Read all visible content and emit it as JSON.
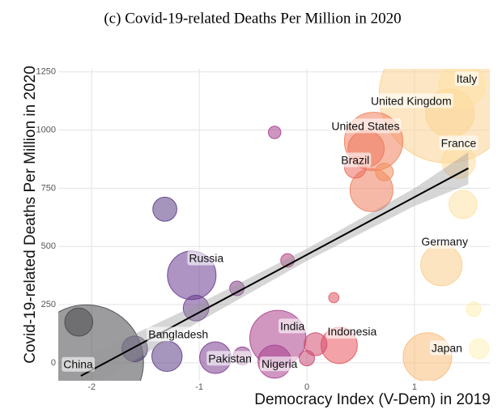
{
  "chart_data": {
    "type": "bubble",
    "title": "(c) Covid-19-related Deaths Per Million in 2020",
    "x_label": "Democracy Index (V-Dem) in 2019",
    "y_label": "Covid-19-related Deaths Per Million in 2020",
    "xlim": [
      -2.31,
      1.7
    ],
    "ylim": [
      -77,
      1263
    ],
    "xticks": [
      -2,
      -1,
      0,
      1
    ],
    "yticks": [
      0,
      250,
      500,
      750,
      1000,
      1250
    ],
    "grid": true,
    "colorscale": {
      "stops": [
        -2,
        -1.2,
        -0.3,
        0.3,
        0.9,
        1.6
      ],
      "colors": [
        "#4a4a4e",
        "#5e3c8f",
        "#a8408e",
        "#e9585e",
        "#f6a660",
        "#fff3b8"
      ]
    },
    "series": [
      {
        "labels": [
          "China",
          "Bangladesh",
          "Pakistan",
          "Nigeria",
          "India",
          "Indonesia",
          "Japan",
          "Germany",
          "France",
          "Brazil",
          "United States",
          "United Kingdom",
          "Italy",
          "Russia",
          null,
          null,
          null,
          null,
          null,
          null,
          null,
          null,
          null,
          null,
          null,
          null,
          null,
          null,
          null,
          null,
          null,
          null
        ],
        "x": [
          -2.05,
          -1.3,
          -0.85,
          -0.3,
          -0.27,
          0.3,
          1.12,
          1.25,
          1.41,
          0.6,
          0.62,
          1.33,
          1.44,
          -1.07,
          1.3,
          -1.32,
          -0.3,
          -2.12,
          -1.03,
          -0.65,
          0.55,
          0.45,
          0.72,
          1.45,
          1.55,
          -0.18,
          0.08,
          0.25,
          -1.6,
          -0.6,
          1.6,
          0.0
        ],
        "values": [
          3,
          28,
          22,
          5,
          105,
          75,
          25,
          420,
          864,
          742,
          951,
          1073,
          1195,
          376,
          1150,
          660,
          990,
          175,
          235,
          320,
          920,
          840,
          820,
          680,
          230,
          440,
          80,
          280,
          60,
          30,
          60,
          20
        ],
        "sizes": [
          5000,
          350,
          380,
          420,
          1200,
          500,
          900,
          650,
          420,
          700,
          1300,
          900,
          800,
          900,
          7000,
          220,
          60,
          300,
          250,
          80,
          500,
          180,
          120,
          300,
          80,
          70,
          200,
          40,
          250,
          120,
          150,
          90
        ]
      }
    ],
    "trend": {
      "x": [
        -2.1,
        1.5
      ],
      "values": [
        -56,
        836
      ]
    },
    "band": {
      "x": [
        -2.1,
        -1,
        0,
        1,
        1.5
      ],
      "upper": [
        15,
        255,
        490,
        750,
        905
      ],
      "lower": [
        -125,
        177,
        438,
        674,
        767
      ]
    }
  }
}
